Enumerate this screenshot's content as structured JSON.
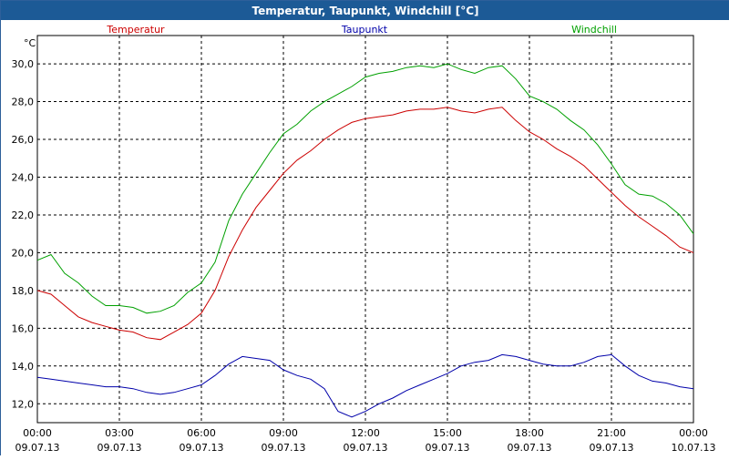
{
  "window": {
    "title": "Temperatur, Taupunkt, Windchill [°C]"
  },
  "colors": {
    "titlebar": "#1c5a96",
    "temperatur": "#cc0000",
    "taupunkt": "#0000aa",
    "windchill": "#00a000",
    "grid": "#000000"
  },
  "chart_data": {
    "type": "line",
    "title": "Temperatur, Taupunkt, Windchill [°C]",
    "ylabel": "°C",
    "xlabel": "",
    "ylim": [
      11,
      31.5
    ],
    "xlim_hours": [
      0,
      24
    ],
    "y_ticks": [
      {
        "value": 12,
        "label": "12,0"
      },
      {
        "value": 14,
        "label": "14,0"
      },
      {
        "value": 16,
        "label": "16,0"
      },
      {
        "value": 18,
        "label": "18,0"
      },
      {
        "value": 20,
        "label": "20,0"
      },
      {
        "value": 22,
        "label": "22,0"
      },
      {
        "value": 24,
        "label": "24,0"
      },
      {
        "value": 26,
        "label": "26,0"
      },
      {
        "value": 28,
        "label": "28,0"
      },
      {
        "value": 30,
        "label": "30,0"
      }
    ],
    "x_ticks": [
      {
        "hour": 0,
        "time": "00:00",
        "date": "09.07.13"
      },
      {
        "hour": 3,
        "time": "03:00",
        "date": "09.07.13"
      },
      {
        "hour": 6,
        "time": "06:00",
        "date": "09.07.13"
      },
      {
        "hour": 9,
        "time": "09:00",
        "date": "09.07.13"
      },
      {
        "hour": 12,
        "time": "12:00",
        "date": "09.07.13"
      },
      {
        "hour": 15,
        "time": "15:00",
        "date": "09.07.13"
      },
      {
        "hour": 18,
        "time": "18:00",
        "date": "09.07.13"
      },
      {
        "hour": 21,
        "time": "21:00",
        "date": "09.07.13"
      },
      {
        "hour": 24,
        "time": "00:00",
        "date": "10.07.13"
      }
    ],
    "grid": true,
    "series": [
      {
        "name": "Temperatur",
        "color": "#cc0000",
        "x": [
          0,
          0.5,
          1,
          1.5,
          2,
          2.5,
          3,
          3.5,
          4,
          4.5,
          5,
          5.5,
          6,
          6.5,
          7,
          7.5,
          8,
          8.5,
          9,
          9.5,
          10,
          10.5,
          11,
          11.5,
          12,
          12.5,
          13,
          13.5,
          14,
          14.5,
          15,
          15.5,
          16,
          16.5,
          17,
          17.5,
          18,
          18.5,
          19,
          19.5,
          20,
          20.5,
          21,
          21.5,
          22,
          22.5,
          23,
          23.5,
          24
        ],
        "values": [
          18.0,
          17.8,
          17.2,
          16.6,
          16.3,
          16.1,
          15.9,
          15.8,
          15.5,
          15.4,
          15.8,
          16.2,
          16.8,
          18.0,
          19.8,
          21.2,
          22.4,
          23.3,
          24.2,
          24.9,
          25.4,
          26.0,
          26.5,
          26.9,
          27.1,
          27.2,
          27.3,
          27.5,
          27.6,
          27.6,
          27.7,
          27.5,
          27.4,
          27.6,
          27.7,
          27.0,
          26.4,
          26.0,
          25.5,
          25.1,
          24.6,
          23.9,
          23.2,
          22.5,
          21.9,
          21.4,
          20.9,
          20.3,
          20.0
        ]
      },
      {
        "name": "Taupunkt",
        "color": "#0000aa",
        "x": [
          0,
          0.5,
          1,
          1.5,
          2,
          2.5,
          3,
          3.5,
          4,
          4.5,
          5,
          5.5,
          6,
          6.5,
          7,
          7.5,
          8,
          8.5,
          9,
          9.5,
          10,
          10.5,
          11,
          11.5,
          12,
          12.5,
          13,
          13.5,
          14,
          14.5,
          15,
          15.5,
          16,
          16.5,
          17,
          17.5,
          18,
          18.5,
          19,
          19.5,
          20,
          20.5,
          21,
          21.5,
          22,
          22.5,
          23,
          23.5,
          24
        ],
        "values": [
          13.4,
          13.3,
          13.2,
          13.1,
          13.0,
          12.9,
          12.9,
          12.8,
          12.6,
          12.5,
          12.6,
          12.8,
          13.0,
          13.5,
          14.1,
          14.5,
          14.4,
          14.3,
          13.8,
          13.5,
          13.3,
          12.8,
          11.6,
          11.3,
          11.6,
          12.0,
          12.3,
          12.7,
          13.0,
          13.3,
          13.6,
          14.0,
          14.2,
          14.3,
          14.6,
          14.5,
          14.3,
          14.1,
          14.0,
          14.0,
          14.2,
          14.5,
          14.6,
          14.0,
          13.5,
          13.2,
          13.1,
          12.9,
          12.8
        ]
      },
      {
        "name": "Windchill",
        "color": "#00a000",
        "x": [
          0,
          0.5,
          1,
          1.5,
          2,
          2.5,
          3,
          3.5,
          4,
          4.5,
          5,
          5.5,
          6,
          6.5,
          7,
          7.5,
          8,
          8.5,
          9,
          9.5,
          10,
          10.5,
          11,
          11.5,
          12,
          12.5,
          13,
          13.5,
          14,
          14.5,
          15,
          15.5,
          16,
          16.5,
          17,
          17.5,
          18,
          18.5,
          19,
          19.5,
          20,
          20.5,
          21,
          21.5,
          22,
          22.5,
          23,
          23.5,
          24
        ],
        "values": [
          19.6,
          19.9,
          18.9,
          18.4,
          17.7,
          17.2,
          17.2,
          17.1,
          16.8,
          16.9,
          17.2,
          17.9,
          18.4,
          19.5,
          21.7,
          23.1,
          24.2,
          25.3,
          26.3,
          26.8,
          27.5,
          28.0,
          28.4,
          28.8,
          29.3,
          29.5,
          29.6,
          29.8,
          29.9,
          29.8,
          30.0,
          29.7,
          29.5,
          29.8,
          29.9,
          29.2,
          28.3,
          28.0,
          27.6,
          27.0,
          26.5,
          25.7,
          24.7,
          23.6,
          23.1,
          23.0,
          22.6,
          22.0,
          21.0
        ]
      }
    ],
    "legend": [
      "Temperatur",
      "Taupunkt",
      "Windchill"
    ]
  }
}
